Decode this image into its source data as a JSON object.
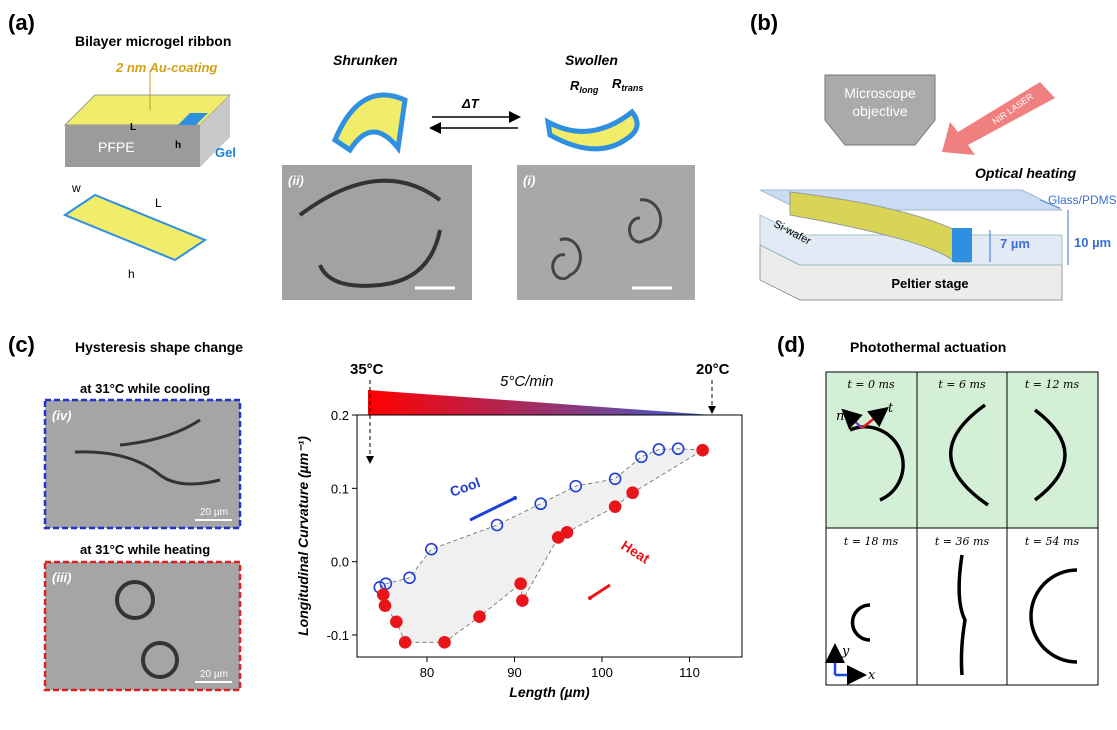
{
  "panel_a": {
    "label": "(a)",
    "title": "Bilayer microgel ribbon",
    "coating": "2 nm Au-coating",
    "block_length": "L",
    "block_height": "h",
    "substrate": "PFPE",
    "gel": "Gel",
    "ribbon_width": "w",
    "ribbon_length": "L",
    "ribbon_height": "h",
    "shrunken": "Shrunken",
    "swollen": "Swollen",
    "delta_t": "ΔT",
    "r_long": {
      "symbol": "R",
      "sub": "long"
    },
    "r_trans": {
      "symbol": "R",
      "sub": "trans"
    },
    "image_ii": "(ii)",
    "image_i": "(i)"
  },
  "panel_b": {
    "label": "(b)",
    "objective": [
      "Microscope",
      "objective"
    ],
    "laser": "NIR LASER",
    "heating": "Optical heating",
    "glass": "Glass/PDMS",
    "wafer": "Si-wafer",
    "gel_height": "7 µm",
    "gap_height": "10 µm",
    "stage": "Peltier stage"
  },
  "panel_c": {
    "label": "(c)",
    "title": "Hysteresis shape change",
    "cooling_caption": "at 31°C while cooling",
    "cooling_image": "(iv)",
    "cooling_scale": "20 µm",
    "heating_caption": "at 31°C while heating",
    "heating_image": "(iii)",
    "heating_scale": "20 µm",
    "temp_start": "35°C",
    "rate": "5°C/min",
    "temp_end": "20°C"
  },
  "chart_data": {
    "type": "scatter",
    "x_label": "Length (µm)",
    "y_label": "Longitudinal Curvature (µm⁻¹)",
    "xlim": [
      72,
      116
    ],
    "ylim": [
      -0.13,
      0.2
    ],
    "xticks": [
      80,
      90,
      100,
      110
    ],
    "yticks": [
      -0.1,
      {
        "value": 0,
        "label": "0.0"
      },
      0.1,
      0.2
    ],
    "series": [
      {
        "name": "Cool",
        "color": "#1f3fd6",
        "marker": "open",
        "x": [
          74.6,
          75.3,
          78,
          80.5,
          88,
          93,
          97,
          101.5,
          104.5,
          106.5,
          108.7
        ],
        "values": [
          -0.035,
          -0.03,
          -0.022,
          0.017,
          0.05,
          0.079,
          0.103,
          0.113,
          0.143,
          0.153,
          0.154
        ]
      },
      {
        "name": "Heat",
        "color": "#e8161b",
        "marker": "filled",
        "x": [
          75,
          75.2,
          76.5,
          77.5,
          82,
          86,
          90.7,
          90.9,
          95,
          96,
          101.5,
          103.5,
          111.5
        ],
        "values": [
          -0.045,
          -0.06,
          -0.082,
          -0.11,
          -0.11,
          -0.075,
          -0.03,
          -0.053,
          0.033,
          0.04,
          0.075,
          0.094,
          0.152
        ]
      }
    ]
  },
  "panel_d": {
    "label": "(d)",
    "title": "Photothermal actuation",
    "frames": [
      "t = 0 ms",
      "t = 6 ms",
      "t = 12 ms",
      "t = 18 ms",
      "t = 36 ms",
      "t = 54 ms"
    ],
    "normal": "n",
    "tangent": "t",
    "axis_y": "y",
    "axis_x": "x"
  }
}
